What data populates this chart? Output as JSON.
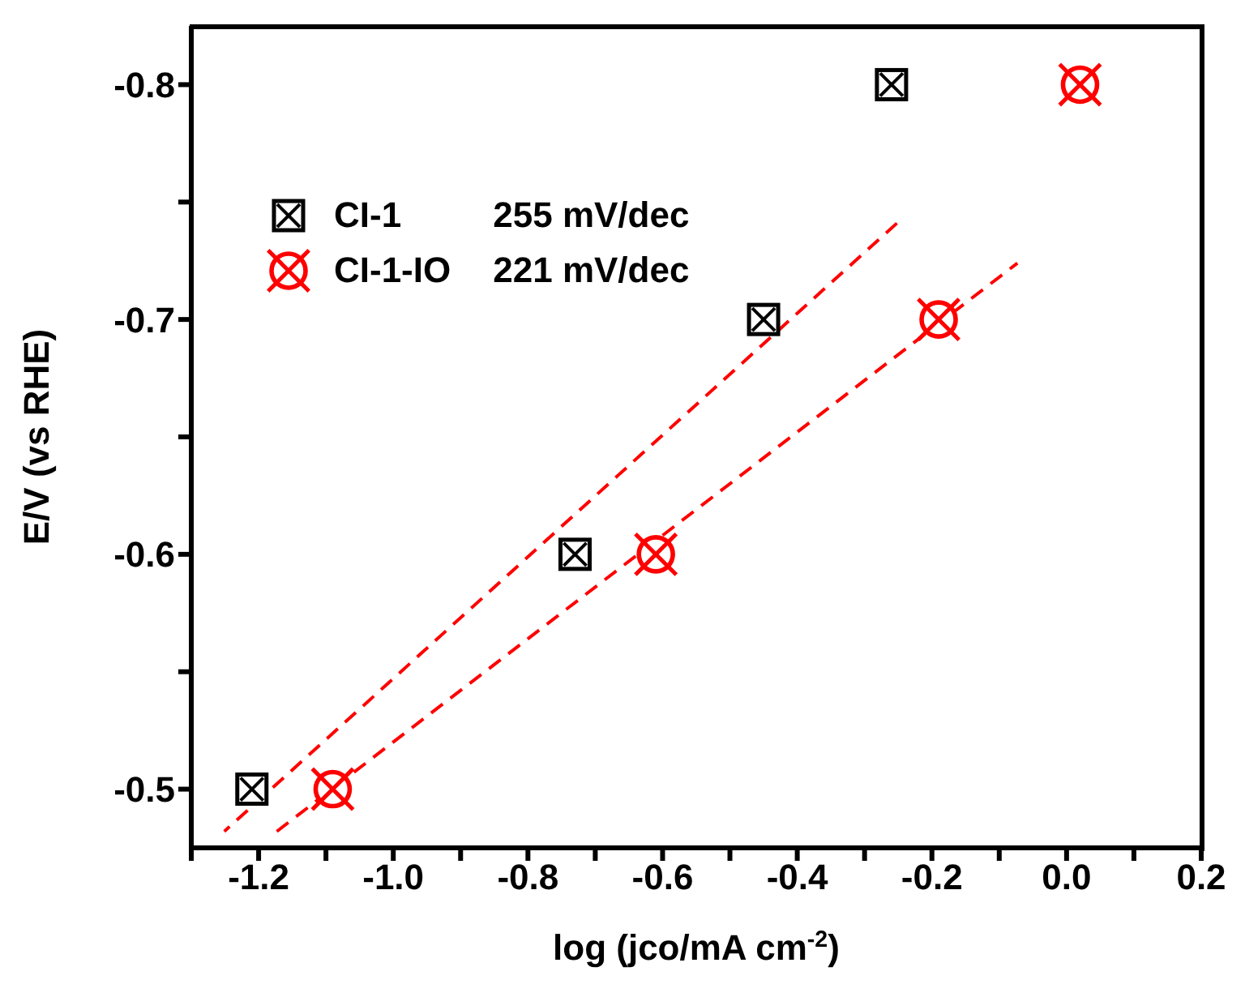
{
  "chart_data": {
    "type": "scatter",
    "xlabel": "log (jco/mA cm$^{-2}$)",
    "ylabel": "E/V (vs RHE)",
    "xlim": [
      -1.3,
      0.2
    ],
    "xticks": [
      {
        "value": -1.3,
        "label": null
      },
      -1.2,
      {
        "value": -1.1,
        "label": null
      },
      {
        "value": -1.0,
        "label": "-1.0"
      },
      {
        "value": -0.9,
        "label": null
      },
      -0.8,
      {
        "value": -0.7,
        "label": null
      },
      -0.6,
      {
        "value": -0.5,
        "label": null
      },
      -0.4,
      {
        "value": -0.3,
        "label": null
      },
      -0.2,
      {
        "value": -0.1,
        "label": null
      },
      {
        "value": 0,
        "label": "0.0"
      },
      {
        "value": 0.1,
        "label": null
      },
      0.2
    ],
    "ylim": [
      -0.475,
      -0.825
    ],
    "yticks": [
      -0.5,
      {
        "value": -0.55,
        "label": null
      },
      -0.6,
      {
        "value": -0.65,
        "label": null
      },
      -0.7,
      {
        "value": -0.75,
        "label": null
      },
      -0.8
    ],
    "grid": false,
    "legend": "top left",
    "annotations": [
      "255 mV/dec",
      "221 mV/dec"
    ],
    "series": [
      {
        "name": "CI-1",
        "color": "#000000",
        "marker": "square",
        "x": [
          -1.21,
          -0.73,
          -0.45,
          -0.26
        ],
        "values": [
          -0.5,
          -0.6,
          -0.7,
          -0.8
        ]
      },
      {
        "name": "CI-1-IO",
        "color": "#ff0000",
        "marker": "circle",
        "x": [
          -1.09,
          -0.61,
          -0.19,
          0.02
        ],
        "values": [
          -0.5,
          -0.6,
          -0.7,
          -0.8
        ]
      },
      {
        "type": "line",
        "color": "#ff0000",
        "line_style": "dashed",
        "marker": "none",
        "x": [
          -0.252,
          -1.251
        ],
        "values": [
          -0.741,
          -0.482
        ]
      },
      {
        "type": "line",
        "color": "#ff0000",
        "line_style": "dashed",
        "marker": "none",
        "x": [
          -1.173,
          -0.073
        ],
        "values": [
          -0.482,
          -0.724
        ]
      }
    ]
  }
}
